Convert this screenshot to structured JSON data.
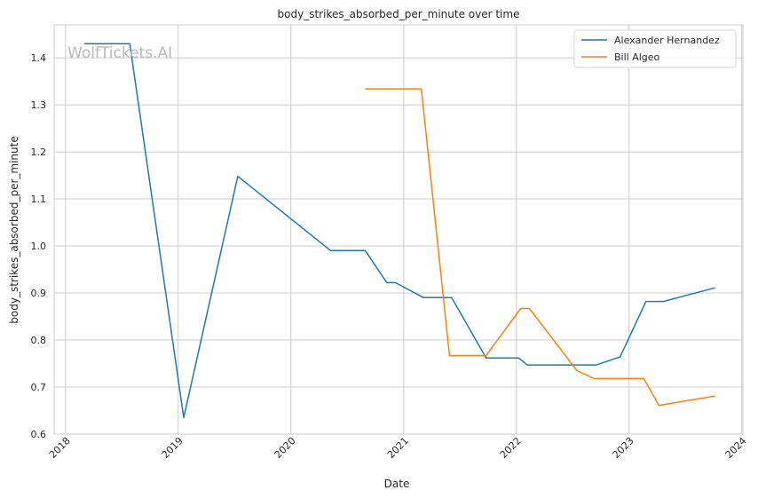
{
  "watermark": "WolfTickets.AI",
  "chart_data": {
    "type": "line",
    "title": "body_strikes_absorbed_per_minute over time",
    "xlabel": "Date",
    "ylabel": "body_strikes_absorbed_per_minute",
    "xlim": [
      "2017-11-25",
      "2024-01-05"
    ],
    "ylim": [
      0.6,
      1.47
    ],
    "x_ticks": [
      "2018",
      "2019",
      "2020",
      "2021",
      "2022",
      "2023",
      "2024"
    ],
    "y_ticks": [
      "0.6",
      "0.7",
      "0.8",
      "0.9",
      "1.0",
      "1.1",
      "1.2",
      "1.3",
      "1.4"
    ],
    "grid": true,
    "legend_position": "top-right",
    "series": [
      {
        "name": "Alexander Hernandez",
        "color": "#1f77b4",
        "points": [
          [
            "2018-03-03",
            1.43
          ],
          [
            "2018-07-28",
            1.43
          ],
          [
            "2019-01-19",
            0.635
          ],
          [
            "2019-07-13",
            1.148
          ],
          [
            "2020-05-09",
            0.99
          ],
          [
            "2020-08-29",
            0.99
          ],
          [
            "2020-11-07",
            0.922
          ],
          [
            "2020-12-05",
            0.922
          ],
          [
            "2021-03-06",
            0.89
          ],
          [
            "2021-06-05",
            0.89
          ],
          [
            "2021-09-25",
            0.762
          ],
          [
            "2022-01-08",
            0.762
          ],
          [
            "2022-02-05",
            0.747
          ],
          [
            "2022-09-17",
            0.747
          ],
          [
            "2022-12-03",
            0.764
          ],
          [
            "2023-02-25",
            0.882
          ],
          [
            "2023-04-22",
            0.882
          ],
          [
            "2023-10-07",
            0.911
          ]
        ]
      },
      {
        "name": "Bill Algeo",
        "color": "#ff7f0e",
        "points": [
          [
            "2020-08-29",
            1.334
          ],
          [
            "2021-02-27",
            1.334
          ],
          [
            "2021-05-29",
            0.767
          ],
          [
            "2021-09-25",
            0.767
          ],
          [
            "2022-01-15",
            0.867
          ],
          [
            "2022-02-12",
            0.867
          ],
          [
            "2022-07-16",
            0.735
          ],
          [
            "2022-09-10",
            0.718
          ],
          [
            "2023-02-18",
            0.718
          ],
          [
            "2023-04-08",
            0.661
          ],
          [
            "2023-10-07",
            0.681
          ]
        ]
      }
    ]
  }
}
